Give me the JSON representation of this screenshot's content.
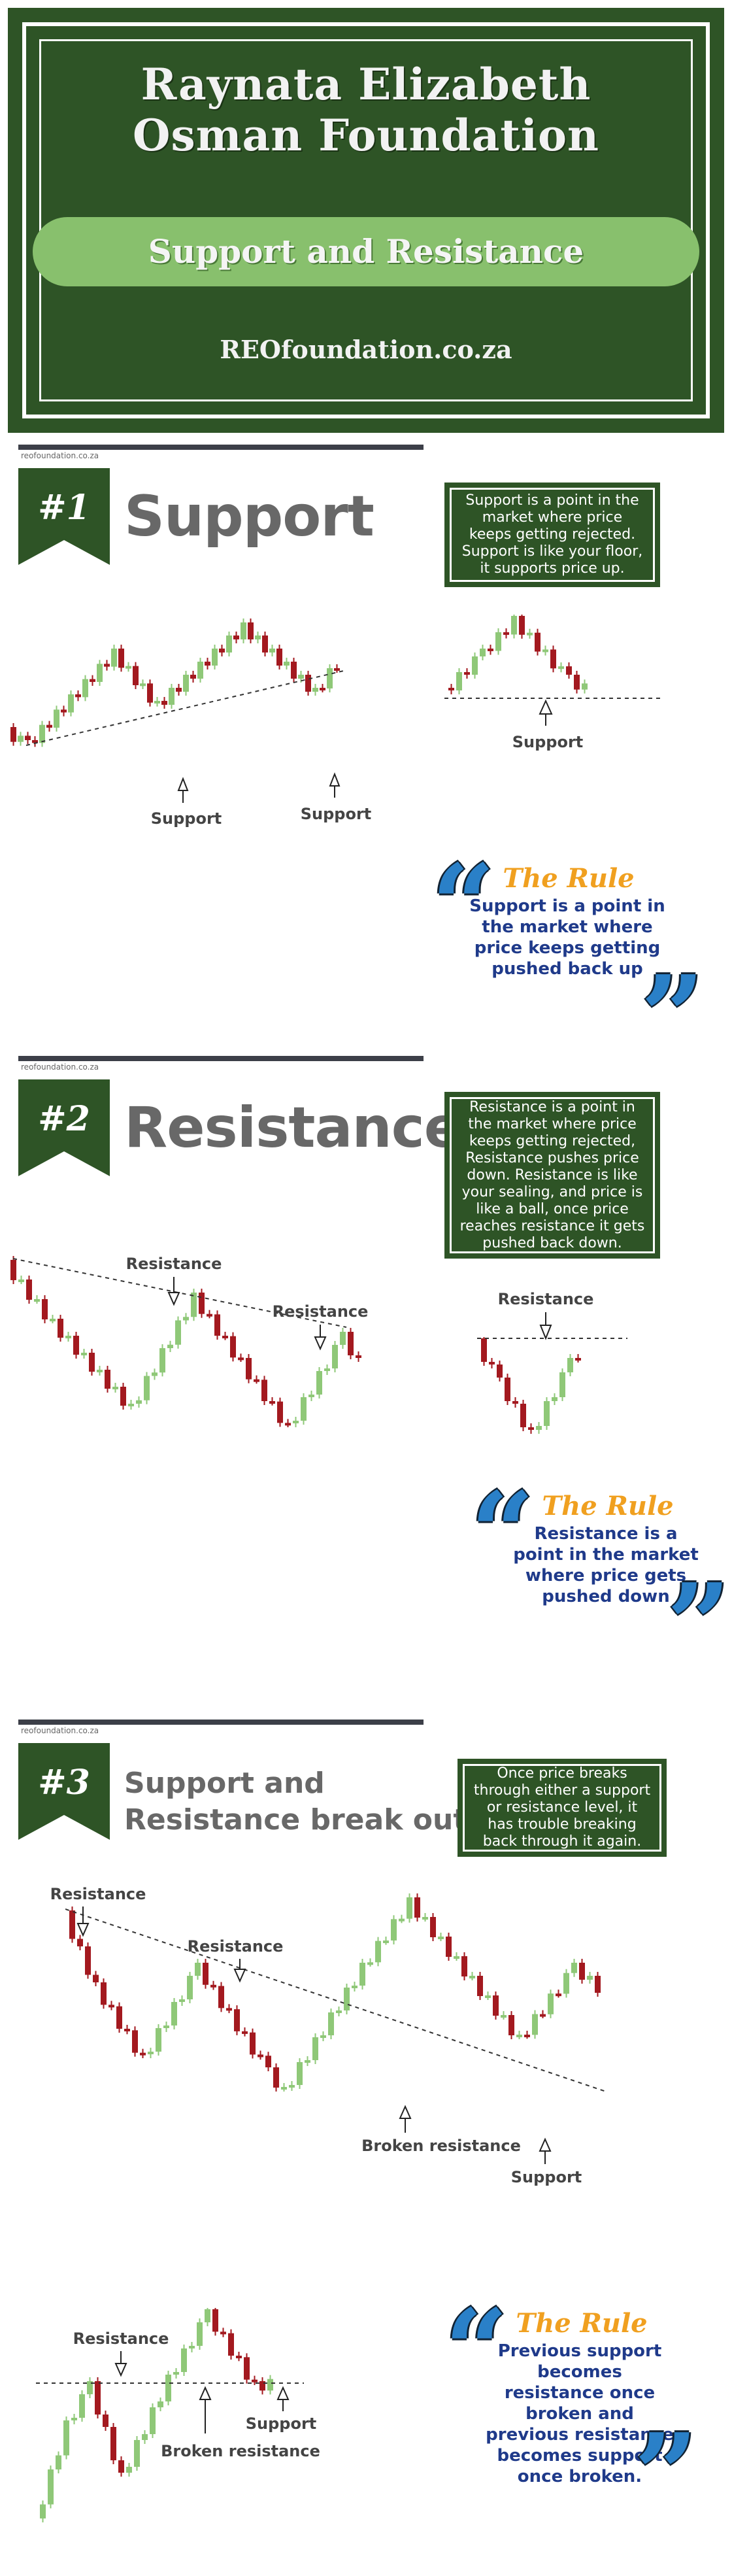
{
  "header": {
    "title_line1": "Raynata Elizabeth",
    "title_line2": "Osman Foundation",
    "subtitle": "Support and Resistance",
    "url": "REOfoundation.co.za"
  },
  "colors": {
    "dark_green": "#2e5426",
    "light_green": "#88c06d",
    "candle_up": "#8fc878",
    "candle_down": "#a3191f",
    "rule_head": "#f0a020",
    "rule_text": "#1f3a8a",
    "quote_blue": "#2a80c8"
  },
  "sections": [
    {
      "number": "#1",
      "source": "reofoundation.co.za",
      "title": "Support",
      "description": "Support is a point in the market where price keeps getting rejected. Support is like your floor, it supports price up.",
      "chart_labels": [
        "Support",
        "Support",
        "Support"
      ],
      "rule_title": "The Rule",
      "rule_text": "Support is a point in the market where price keeps getting pushed back up"
    },
    {
      "number": "#2",
      "source": "reofoundation.co.za",
      "title": "Resistance",
      "description": "Resistance is a point in the market where price keeps getting rejected, Resistance pushes price down. Resistance is like your sealing, and price is like a ball, once price reaches resistance it gets pushed back down.",
      "chart_labels": [
        "Resistance",
        "Resistance",
        "Resistance"
      ],
      "rule_title": "The Rule",
      "rule_text": "Resistance is a point in the market where price gets pushed down"
    },
    {
      "number": "#3",
      "source": "reofoundation.co.za",
      "title_line1": "Support and",
      "title_line2": "Resistance break outs",
      "description": "Once price breaks through either a support or resistance level, it has trouble breaking back through it again.",
      "chart_labels": [
        "Resistance",
        "Resistance",
        "Broken resistance",
        "Support",
        "Resistance",
        "Support",
        "Broken resistance"
      ],
      "rule_title": "The Rule",
      "rule_text": "Previous support becomes resistance once broken and previous resistance becomes support once broken."
    }
  ]
}
